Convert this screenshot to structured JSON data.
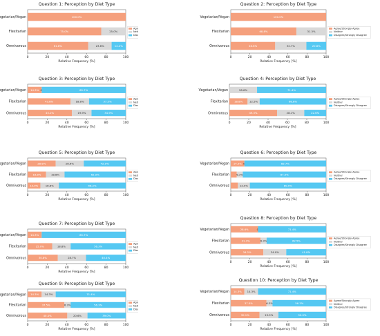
{
  "colors": {
    "agree": "#f5a07d",
    "neither": "#d9d9d9",
    "disagree": "#55c8f2",
    "axis": "#555555",
    "text": "#222222"
  },
  "chart_data": [
    {
      "type": "bar",
      "title": "Question 1: Perception by Diet Type",
      "xlabel": "Relative Frequency [%]",
      "xlim": [
        0,
        100
      ],
      "xticks": [
        "0",
        "20",
        "40",
        "60",
        "80",
        "100"
      ],
      "categories": [
        "Vegetarian/Vegan",
        "Flexitarian",
        "Omnivorous"
      ],
      "legend": [
        "Agree/Strongly Agree",
        "Neither",
        "Disagree/Strongly Disagree"
      ],
      "series": [
        {
          "name": "Agree/Strongly Agree",
          "values": [
            100.0,
            75.0,
            61.8
          ]
        },
        {
          "name": "Neither",
          "values": [
            0.0,
            25.0,
            23.8
          ]
        },
        {
          "name": "Disagree/Strongly Disagree",
          "values": [
            0.0,
            0.0,
            14.4
          ]
        }
      ],
      "data_labels": [
        [
          "100.0%",
          "",
          ""
        ],
        [
          "75.0%",
          "25.0%",
          ""
        ],
        [
          "61.8%",
          "23.8%",
          "14.4%"
        ]
      ]
    },
    {
      "type": "bar",
      "title": "Question 2: Perception by Diet Type",
      "xlabel": "Relative Frequency [%]",
      "xlim": [
        0,
        100
      ],
      "xticks": [
        "0",
        "20",
        "40",
        "60",
        "80",
        "100"
      ],
      "categories": [
        "Vegetarian/Vegan",
        "Flexitarian",
        "Omnivorous"
      ],
      "legend": [
        "Agree/Strongly Agree",
        "Neither",
        "Disagree/Strongly Disagree"
      ],
      "series": [
        {
          "name": "Agree/Strongly Agree",
          "values": [
            100.0,
            68.8,
            46.6
          ]
        },
        {
          "name": "Neither",
          "values": [
            0.0,
            31.3,
            32.7
          ]
        },
        {
          "name": "Disagree/Strongly Disagree",
          "values": [
            0.0,
            0.0,
            20.8
          ]
        }
      ],
      "data_labels": [
        [
          "100.0%",
          "",
          ""
        ],
        [
          "68.8%",
          "31.3%",
          ""
        ],
        [
          "46.6%",
          "32.7%",
          "20.8%"
        ]
      ]
    },
    {
      "type": "bar",
      "title": "Question 3: Perception by Diet Type",
      "xlabel": "Relative Frequency [%]",
      "xlim": [
        0,
        100
      ],
      "xticks": [
        "0",
        "20",
        "40",
        "60",
        "80",
        "100"
      ],
      "categories": [
        "Vegetarian/Vegan",
        "Flexitarian",
        "Omnivorous"
      ],
      "legend": [
        "Agree/Strongly Agree",
        "Neither",
        "Disagree/Strongly Disagree"
      ],
      "series": [
        {
          "name": "Agree/Strongly Agree",
          "values": [
            14.3,
            43.8,
            45.2
          ]
        },
        {
          "name": "Neither",
          "values": [
            0.0,
            18.8,
            19.9
          ]
        },
        {
          "name": "Disagree/Strongly Disagree",
          "values": [
            85.7,
            37.5,
            34.9
          ]
        }
      ],
      "data_labels": [
        [
          "14.3%",
          "0.0%",
          "85.7%"
        ],
        [
          "43.8%",
          "18.8%",
          "37.5%"
        ],
        [
          "45.2%",
          "19.9%",
          "34.9%"
        ]
      ]
    },
    {
      "type": "bar",
      "title": "Question 4: Perception by Diet Type",
      "xlabel": "Relative Frequency [%]",
      "xlim": [
        0,
        100
      ],
      "xticks": [
        "0",
        "20",
        "40",
        "60",
        "80",
        "100"
      ],
      "categories": [
        "Vegetarian/Vegan",
        "Flexitarian",
        "Omnivorous"
      ],
      "legend": [
        "Agree/Strongly Agree",
        "Neither",
        "Disagree/Strongly Disagree"
      ],
      "series": [
        {
          "name": "Agree/Strongly Agree",
          "values": [
            0.0,
            18.8,
            49.3
          ]
        },
        {
          "name": "Neither",
          "values": [
            28.6,
            12.5,
            28.1
          ]
        },
        {
          "name": "Disagree/Strongly Disagree",
          "values": [
            71.4,
            68.8,
            22.6
          ]
        }
      ],
      "data_labels": [
        [
          "",
          "28.6%",
          "71.4%"
        ],
        [
          "18.8%",
          "12.5%",
          "68.8%"
        ],
        [
          "49.3%",
          "28.1%",
          "22.6%"
        ]
      ]
    },
    {
      "type": "bar",
      "title": "Question 5: Perception by Diet Type",
      "xlabel": "Relative Frequency [%]",
      "xlim": [
        0,
        100
      ],
      "xticks": [
        "0",
        "20",
        "40",
        "60",
        "80",
        "100"
      ],
      "categories": [
        "Vegetarian/Vegan",
        "Flexitarian",
        "Omnivorous"
      ],
      "legend": [
        "Agree/Strongly Agree",
        "Neither",
        "Disagree/Strongly Disagree"
      ],
      "series": [
        {
          "name": "Agree/Strongly Agree",
          "values": [
            28.6,
            18.8,
            13.0
          ]
        },
        {
          "name": "Neither",
          "values": [
            28.6,
            18.8,
            18.8
          ]
        },
        {
          "name": "Disagree/Strongly Disagree",
          "values": [
            42.9,
            62.5,
            68.2
          ]
        }
      ],
      "data_labels": [
        [
          "28.6%",
          "28.6%",
          "42.9%"
        ],
        [
          "18.8%",
          "18.8%",
          "62.5%"
        ],
        [
          "13.0%",
          "18.8%",
          "68.2%"
        ]
      ]
    },
    {
      "type": "bar",
      "title": "Question 6: Perception by Diet Type",
      "xlabel": "Relative Frequency [%]",
      "xlim": [
        0,
        100
      ],
      "xticks": [
        "0",
        "20",
        "40",
        "60",
        "80",
        "100"
      ],
      "categories": [
        "Vegetarian/Vegan",
        "Flexitarian",
        "Omnivorous"
      ],
      "legend": [
        "Agree/Strongly Agree",
        "Neither",
        "Disagree/Strongly Disagree"
      ],
      "series": [
        {
          "name": "Agree/Strongly Agree",
          "values": [
            14.3,
            6.3,
            7.5
          ]
        },
        {
          "name": "Neither",
          "values": [
            0.0,
            6.3,
            12.5
          ]
        },
        {
          "name": "Disagree/Strongly Disagree",
          "values": [
            85.7,
            87.5,
            80.0
          ]
        }
      ],
      "data_labels": [
        [
          "14.3%",
          "0.0%",
          "85.7%"
        ],
        [
          "",
          "6.3%",
          "87.5%"
        ],
        [
          "",
          "12.5%",
          "80.0%"
        ]
      ]
    },
    {
      "type": "bar",
      "title": "Question 7: Perception by Diet Type",
      "xlabel": "Relative Frequency [%]",
      "xlim": [
        0,
        100
      ],
      "xticks": [
        "0",
        "20",
        "40",
        "60",
        "80",
        "100"
      ],
      "categories": [
        "Vegetarian/Vegan",
        "Flexitarian",
        "Omnivorous"
      ],
      "legend": [
        "Agree/Strongly Agree",
        "Neither",
        "Disagree/Strongly Disagree"
      ],
      "series": [
        {
          "name": "Agree/Strongly Agree",
          "values": [
            14.3,
            25.0,
            30.8
          ]
        },
        {
          "name": "Neither",
          "values": [
            0.0,
            18.8,
            28.7
          ]
        },
        {
          "name": "Disagree/Strongly Disagree",
          "values": [
            85.7,
            56.3,
            40.4
          ]
        }
      ],
      "data_labels": [
        [
          "14.3%",
          "",
          "85.7%"
        ],
        [
          "25.0%",
          "18.8%",
          "56.3%"
        ],
        [
          "30.8%",
          "28.7%",
          "40.4%"
        ]
      ]
    },
    {
      "type": "bar",
      "title": "Question 8: Perception by Diet Type",
      "xlabel": "Relative Frequency [%]",
      "xlim": [
        0,
        100
      ],
      "xticks": [
        "0",
        "20",
        "40",
        "60",
        "80",
        "100"
      ],
      "categories": [
        "Vegetarian/Vegan",
        "Flexitarian",
        "Omnivorous"
      ],
      "legend": [
        "Agree/Strongly Agree",
        "Neither",
        "Disagree/Strongly Disagree"
      ],
      "series": [
        {
          "name": "Agree/Strongly Agree",
          "values": [
            28.6,
            31.3,
            34.2
          ]
        },
        {
          "name": "Neither",
          "values": [
            0.0,
            6.3,
            24.0
          ]
        },
        {
          "name": "Disagree/Strongly Disagree",
          "values": [
            71.4,
            62.5,
            41.8
          ]
        }
      ],
      "data_labels": [
        [
          "28.6%",
          "0.0%",
          "71.4%"
        ],
        [
          "31.3%",
          "6.3%",
          "62.5%"
        ],
        [
          "34.2%",
          "24.0%",
          "41.8%"
        ]
      ]
    },
    {
      "type": "bar",
      "title": "Question 9: Perception by Diet Type",
      "xlabel": "Relative Frequency [%]",
      "xlim": [
        0,
        100
      ],
      "xticks": [
        "0",
        "20",
        "40",
        "60",
        "80",
        "100"
      ],
      "categories": [
        "Vegetarian/Vegan",
        "Flexitarian",
        "Omnivorous"
      ],
      "legend": [
        "Agree/Strongly Agree",
        "Neither",
        "Disagree/Strongly Disagree"
      ],
      "series": [
        {
          "name": "Agree/Strongly Agree",
          "values": [
            14.3,
            37.5,
            40.4
          ]
        },
        {
          "name": "Neither",
          "values": [
            14.3,
            6.3,
            20.6
          ]
        },
        {
          "name": "Disagree/Strongly Disagree",
          "values": [
            71.4,
            56.3,
            39.0
          ]
        }
      ],
      "data_labels": [
        [
          "14.3%",
          "14.3%",
          "71.4%"
        ],
        [
          "37.5%",
          "6.3%",
          "56.3%"
        ],
        [
          "40.4%",
          "20.6%",
          "39.0%"
        ]
      ]
    },
    {
      "type": "bar",
      "title": "Question 10: Perception by Diet Type",
      "xlabel": "Relative Frequency [%]",
      "xlim": [
        0,
        100
      ],
      "xticks": [
        "0",
        "20",
        "40",
        "60",
        "80",
        "100"
      ],
      "categories": [
        "Vegetarian/Vegan",
        "Flexitarian",
        "Omnivorous"
      ],
      "legend": [
        "Agree/Strongly Agree",
        "Neither",
        "Disagree/Strongly Disagree"
      ],
      "series": [
        {
          "name": "Agree/Strongly Agree",
          "values": [
            14.3,
            37.5,
            30.1
          ]
        },
        {
          "name": "Neither",
          "values": [
            14.3,
            6.3,
            19.9
          ]
        },
        {
          "name": "Disagree/Strongly Disagree",
          "values": [
            71.4,
            56.3,
            50.0
          ]
        }
      ],
      "data_labels": [
        [
          "14.3%",
          "14.3%",
          "71.4%"
        ],
        [
          "37.5%",
          "6.3%",
          "56.3%"
        ],
        [
          "30.1%",
          "19.9%",
          "50.0%"
        ]
      ]
    }
  ]
}
